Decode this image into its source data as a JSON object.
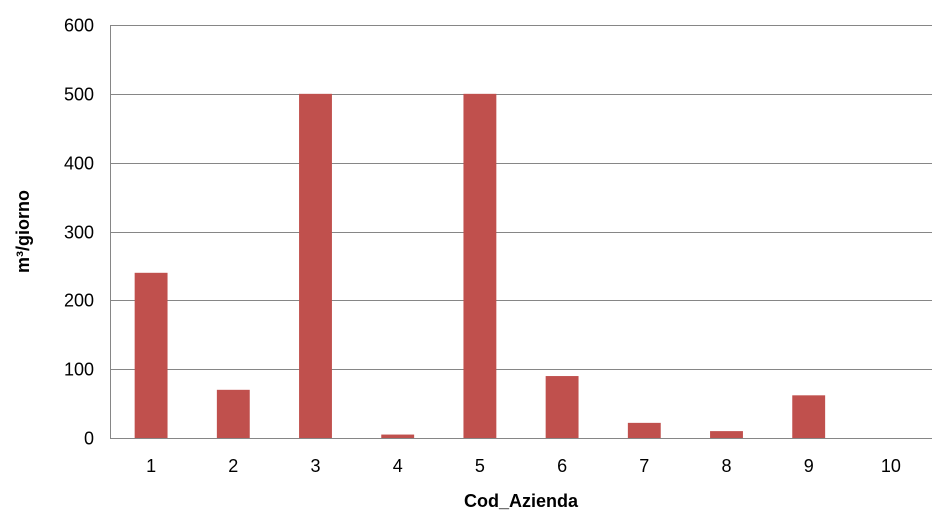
{
  "chart_data": {
    "type": "bar",
    "categories": [
      "1",
      "2",
      "3",
      "4",
      "5",
      "6",
      "7",
      "8",
      "9",
      "10"
    ],
    "values": [
      240,
      70,
      500,
      5,
      500,
      90,
      22,
      10,
      62,
      0
    ],
    "xlabel": "Cod_Azienda",
    "ylabel": "m³/giorno",
    "ylim": [
      0,
      600
    ],
    "yticks": [
      0,
      100,
      200,
      300,
      400,
      500,
      600
    ],
    "grid": true,
    "bar_color": "#c0504d",
    "grid_color": "#868686"
  }
}
